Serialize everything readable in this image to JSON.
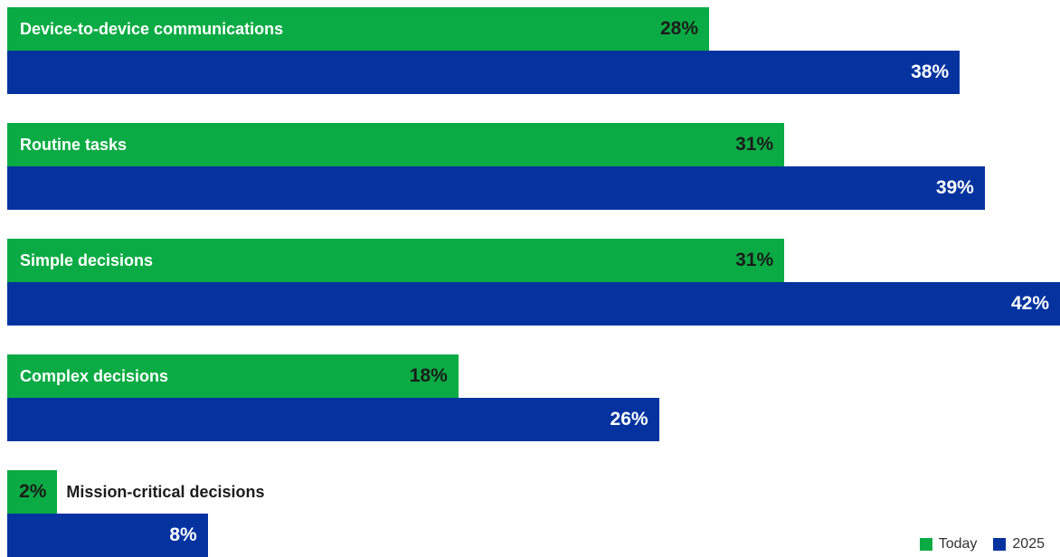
{
  "chart_data": {
    "type": "bar",
    "orientation": "horizontal",
    "categories": [
      "Device-to-device communications",
      "Routine tasks",
      "Simple decisions",
      "Complex decisions",
      "Mission-critical decisions"
    ],
    "series": [
      {
        "name": "Today",
        "values": [
          28,
          31,
          31,
          18,
          2
        ],
        "color": "#0aab44"
      },
      {
        "name": "2025",
        "values": [
          38,
          39,
          42,
          26,
          8
        ],
        "color": "#0433a0"
      }
    ],
    "value_suffix": "%",
    "xlim": [
      0,
      42
    ],
    "grid": false,
    "legend": "bottom-right"
  }
}
